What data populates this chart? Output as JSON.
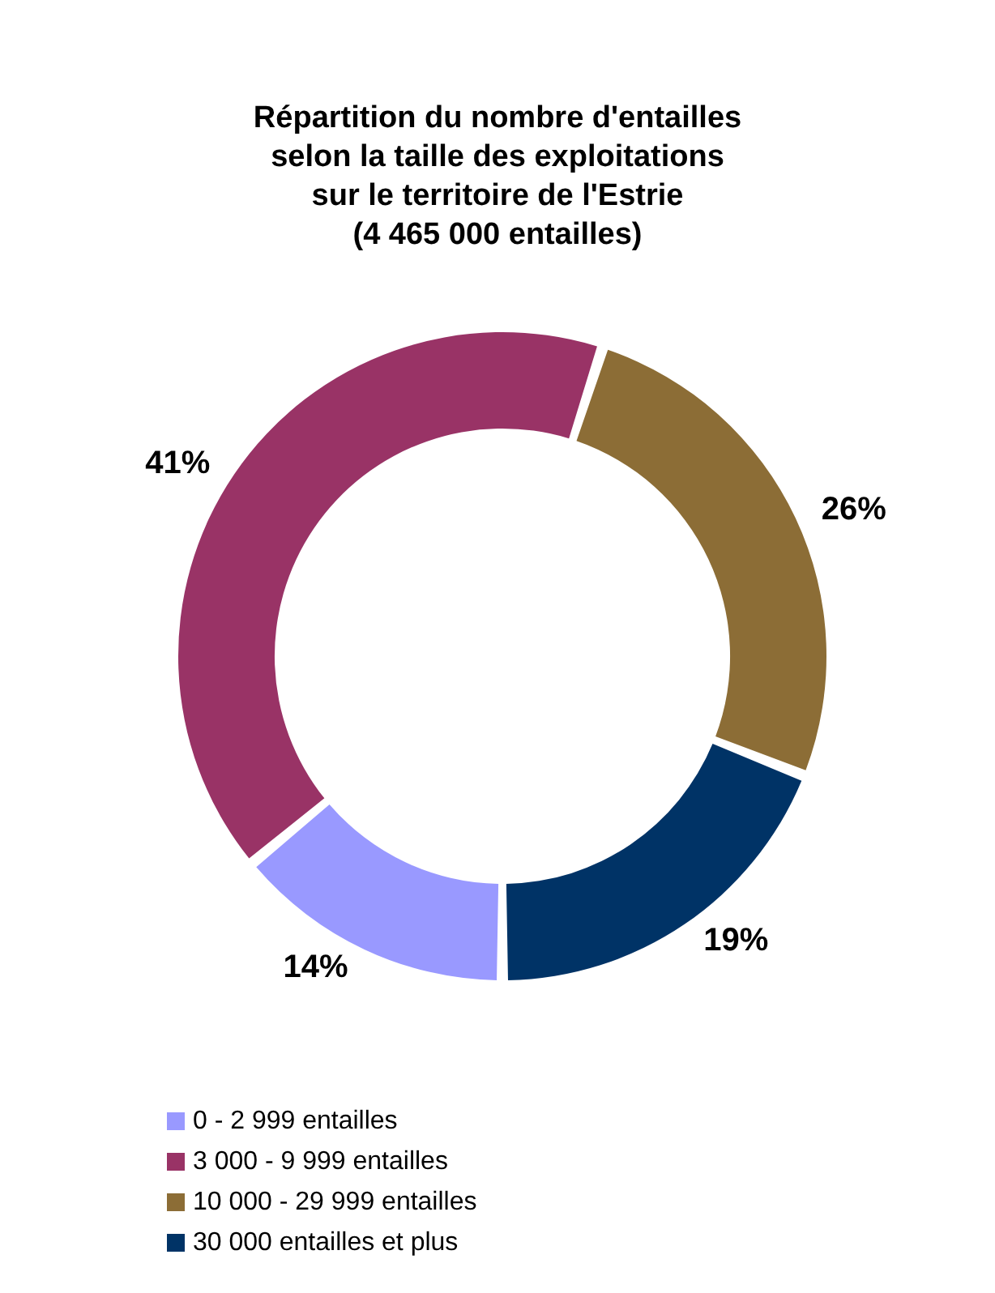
{
  "chart_data": {
    "type": "donut",
    "title": "Répartition du nombre d'entailles\nselon la taille des exploitations\nsur le territoire de l'Estrie\n(4 465 000 entailles)",
    "categories": [
      "0 - 2 999 entailles",
      "3 000 - 9 999 entailles",
      "10 000 - 29 999 entailles",
      "30 000 entailles et plus"
    ],
    "values": [
      14,
      41,
      26,
      19
    ],
    "colors": [
      "#9999ff",
      "#993366",
      "#8c6d36",
      "#003366"
    ],
    "value_labels": [
      "14%",
      "41%",
      "26%",
      "19%"
    ],
    "legend": "bottom left"
  }
}
